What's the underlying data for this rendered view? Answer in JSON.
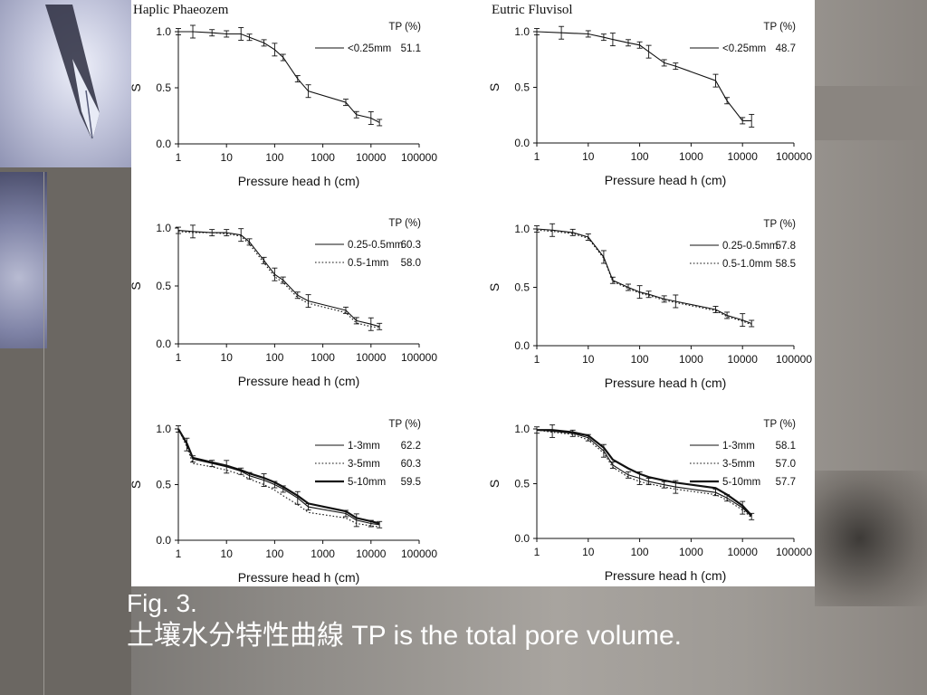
{
  "caption": {
    "figure_label": "Fig. 3.",
    "chinese_text": "土壤水分特性曲線",
    "english_text": "TP is the total pore volume."
  },
  "chart_data": [
    {
      "type": "line",
      "title": "Haplic Phaeozem",
      "xlabel": "Pressure head h (cm)",
      "ylabel": "S",
      "xscale": "log",
      "xlim": [
        1,
        100000
      ],
      "ylim": [
        0,
        1
      ],
      "xticks": [
        "1",
        "10",
        "100",
        "1000",
        "10000",
        "100000"
      ],
      "yticks": [
        "0.0",
        "0.5",
        "1.0"
      ],
      "legend_title": "TP (%)",
      "series": [
        {
          "name": "<0.25mm",
          "tp": "51.1",
          "style": "solid",
          "x": [
            1,
            2,
            5,
            10,
            20,
            30,
            60,
            100,
            150,
            300,
            500,
            3000,
            5000,
            10000,
            15000
          ],
          "y": [
            1.0,
            1.0,
            0.99,
            0.98,
            0.98,
            0.95,
            0.9,
            0.84,
            0.77,
            0.58,
            0.47,
            0.37,
            0.26,
            0.23,
            0.19
          ]
        }
      ]
    },
    {
      "type": "line",
      "title": "Eutric Fluvisol",
      "xlabel": "Pressure head h (cm)",
      "ylabel": "S",
      "xscale": "log",
      "xlim": [
        1,
        100000
      ],
      "ylim": [
        0,
        1
      ],
      "xticks": [
        "1",
        "10",
        "100",
        "1000",
        "10000",
        "100000"
      ],
      "yticks": [
        "0.0",
        "0.5",
        "1.0"
      ],
      "legend_title": "TP (%)",
      "series": [
        {
          "name": "<0.25mm",
          "tp": "48.7",
          "style": "solid",
          "x": [
            1,
            3,
            10,
            20,
            30,
            60,
            100,
            150,
            300,
            500,
            3000,
            5000,
            10000,
            15000
          ],
          "y": [
            1.0,
            0.99,
            0.98,
            0.95,
            0.93,
            0.9,
            0.88,
            0.82,
            0.72,
            0.69,
            0.56,
            0.38,
            0.2,
            0.2
          ]
        }
      ]
    },
    {
      "type": "line",
      "xlabel": "Pressure head h (cm)",
      "ylabel": "S",
      "xscale": "log",
      "xlim": [
        1,
        100000
      ],
      "ylim": [
        0,
        1
      ],
      "xticks": [
        "1",
        "10",
        "100",
        "1000",
        "10000",
        "100000"
      ],
      "yticks": [
        "0.0",
        "0.5",
        "1.0"
      ],
      "legend_title": "TP (%)",
      "series": [
        {
          "name": "0.25-0.5mm",
          "tp": "60.3",
          "style": "solid",
          "x": [
            1,
            2,
            5,
            10,
            20,
            30,
            60,
            100,
            150,
            300,
            500,
            3000,
            5000,
            10000,
            15000
          ],
          "y": [
            0.98,
            0.97,
            0.96,
            0.96,
            0.94,
            0.88,
            0.72,
            0.6,
            0.55,
            0.42,
            0.37,
            0.29,
            0.2,
            0.17,
            0.15
          ]
        },
        {
          "name": "0.5-1mm",
          "tp": "58.0",
          "style": "dotted",
          "x": [
            1,
            2,
            5,
            10,
            20,
            30,
            60,
            100,
            150,
            300,
            500,
            3000,
            5000,
            10000,
            15000
          ],
          "y": [
            0.97,
            0.96,
            0.96,
            0.95,
            0.93,
            0.86,
            0.7,
            0.58,
            0.53,
            0.4,
            0.35,
            0.27,
            0.18,
            0.15,
            0.14
          ]
        }
      ]
    },
    {
      "type": "line",
      "xlabel": "Pressure head h (cm)",
      "ylabel": "S",
      "xscale": "log",
      "xlim": [
        1,
        100000
      ],
      "ylim": [
        0,
        1
      ],
      "xticks": [
        "1",
        "10",
        "100",
        "1000",
        "10000",
        "100000"
      ],
      "yticks": [
        "0.0",
        "0.5",
        "1.0"
      ],
      "legend_title": "TP (%)",
      "series": [
        {
          "name": "0.25-0.5mm",
          "tp": "57.8",
          "style": "solid",
          "x": [
            1,
            2,
            5,
            10,
            20,
            30,
            60,
            100,
            150,
            300,
            500,
            3000,
            5000,
            10000,
            15000
          ],
          "y": [
            1.0,
            0.99,
            0.97,
            0.93,
            0.76,
            0.56,
            0.5,
            0.46,
            0.44,
            0.4,
            0.38,
            0.31,
            0.26,
            0.22,
            0.19
          ]
        },
        {
          "name": "0.5-1.0mm",
          "tp": "58.5",
          "style": "dotted",
          "x": [
            1,
            2,
            5,
            10,
            20,
            30,
            60,
            100,
            150,
            300,
            500,
            3000,
            5000,
            10000,
            15000
          ],
          "y": [
            0.99,
            0.98,
            0.96,
            0.92,
            0.75,
            0.55,
            0.49,
            0.45,
            0.43,
            0.39,
            0.37,
            0.3,
            0.25,
            0.21,
            0.18
          ]
        }
      ]
    },
    {
      "type": "line",
      "xlabel": "Pressure head h (cm)",
      "ylabel": "S",
      "xscale": "log",
      "xlim": [
        1,
        100000
      ],
      "ylim": [
        0,
        1
      ],
      "xticks": [
        "1",
        "10",
        "100",
        "1000",
        "10000",
        "100000"
      ],
      "yticks": [
        "0.0",
        "0.5",
        "1.0"
      ],
      "legend_title": "TP (%)",
      "series": [
        {
          "name": "1-3mm",
          "tp": "62.2",
          "style": "solid",
          "x": [
            1,
            1.5,
            2,
            5,
            10,
            20,
            30,
            60,
            100,
            150,
            300,
            500,
            3000,
            5000,
            10000,
            15000
          ],
          "y": [
            1.0,
            0.86,
            0.73,
            0.69,
            0.66,
            0.62,
            0.58,
            0.54,
            0.5,
            0.46,
            0.38,
            0.3,
            0.24,
            0.18,
            0.15,
            0.14
          ]
        },
        {
          "name": "3-5mm",
          "tp": "60.3",
          "style": "dotted",
          "x": [
            1,
            1.5,
            2,
            5,
            10,
            20,
            30,
            60,
            100,
            150,
            300,
            500,
            3000,
            5000,
            10000,
            15000
          ],
          "y": [
            1.0,
            0.84,
            0.69,
            0.66,
            0.63,
            0.59,
            0.55,
            0.5,
            0.45,
            0.4,
            0.32,
            0.25,
            0.2,
            0.15,
            0.13,
            0.12
          ]
        },
        {
          "name": "5-10mm",
          "tp": "59.5",
          "style": "thick",
          "x": [
            1,
            1.5,
            2,
            5,
            10,
            20,
            30,
            60,
            100,
            150,
            300,
            500,
            3000,
            5000,
            10000,
            15000
          ],
          "y": [
            1.0,
            0.87,
            0.74,
            0.7,
            0.67,
            0.63,
            0.6,
            0.56,
            0.52,
            0.48,
            0.4,
            0.33,
            0.26,
            0.2,
            0.17,
            0.15
          ]
        }
      ]
    },
    {
      "type": "line",
      "xlabel": "Pressure head h (cm)",
      "ylabel": "S",
      "xscale": "log",
      "xlim": [
        1,
        100000
      ],
      "ylim": [
        0,
        1
      ],
      "xticks": [
        "1",
        "10",
        "100",
        "1000",
        "10000",
        "100000"
      ],
      "yticks": [
        "0.0",
        "0.5",
        "1.0"
      ],
      "legend_title": "TP (%)",
      "series": [
        {
          "name": "1-3mm",
          "tp": "58.1",
          "style": "solid",
          "x": [
            1,
            2,
            5,
            10,
            20,
            30,
            60,
            100,
            150,
            300,
            500,
            3000,
            5000,
            10000,
            15000
          ],
          "y": [
            0.99,
            0.98,
            0.96,
            0.92,
            0.8,
            0.67,
            0.58,
            0.55,
            0.52,
            0.49,
            0.47,
            0.42,
            0.37,
            0.28,
            0.2
          ]
        },
        {
          "name": "3-5mm",
          "tp": "57.0",
          "style": "dotted",
          "x": [
            1,
            2,
            5,
            10,
            20,
            30,
            60,
            100,
            150,
            300,
            500,
            3000,
            5000,
            10000,
            15000
          ],
          "y": [
            0.99,
            0.97,
            0.95,
            0.9,
            0.78,
            0.65,
            0.56,
            0.52,
            0.5,
            0.47,
            0.45,
            0.4,
            0.35,
            0.26,
            0.19
          ]
        },
        {
          "name": "5-10mm",
          "tp": "57.7",
          "style": "thick",
          "x": [
            1,
            2,
            5,
            10,
            20,
            30,
            60,
            100,
            150,
            300,
            500,
            3000,
            5000,
            10000,
            15000
          ],
          "y": [
            0.99,
            0.99,
            0.97,
            0.94,
            0.83,
            0.72,
            0.64,
            0.59,
            0.56,
            0.53,
            0.51,
            0.46,
            0.4,
            0.3,
            0.21
          ]
        }
      ]
    }
  ]
}
